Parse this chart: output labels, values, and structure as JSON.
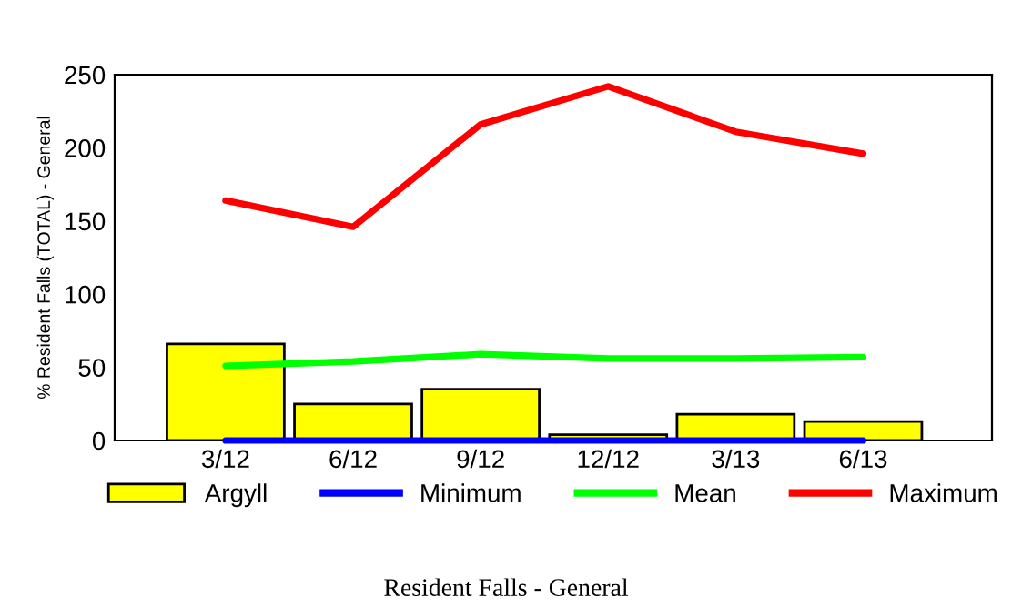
{
  "chart_data": {
    "type": "bar",
    "title": "Resident Falls - General",
    "ylabel": "% Resident Falls (TOTAL) - General",
    "categories": [
      "3/12",
      "6/12",
      "9/12",
      "12/12",
      "3/13",
      "6/13"
    ],
    "series": [
      {
        "name": "Argyll",
        "color": "#ffff00",
        "values": [
          66,
          25,
          35,
          4,
          18,
          13
        ]
      },
      {
        "name": "Minimum",
        "type": "line",
        "color": "#0000ff",
        "values": [
          0,
          0,
          0,
          0,
          0,
          0
        ]
      },
      {
        "name": "Mean",
        "type": "line",
        "color": "#00ff00",
        "values": [
          51,
          54,
          59,
          56,
          56,
          57
        ]
      },
      {
        "name": "Maximum",
        "type": "line",
        "color": "#ff0000",
        "values": [
          164,
          146,
          216,
          242,
          211,
          196
        ]
      }
    ],
    "ylim": [
      0,
      250
    ],
    "yticks": [
      0,
      50,
      100,
      150,
      200,
      250
    ],
    "grid": false,
    "legend": "bottom"
  }
}
